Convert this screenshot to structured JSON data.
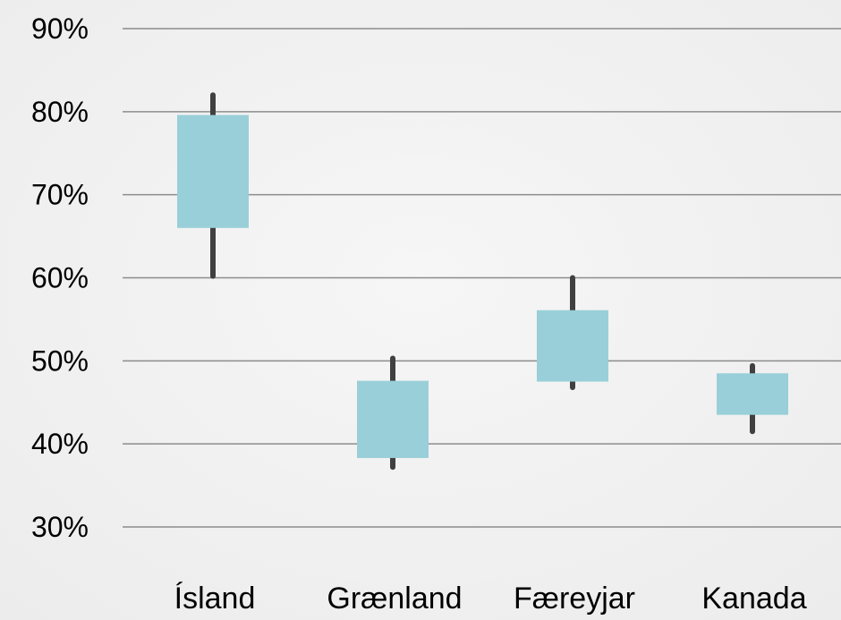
{
  "chart_data": {
    "type": "box",
    "title": "",
    "xlabel": "",
    "ylabel": "",
    "ylim": [
      30,
      90
    ],
    "y_ticks": [
      "30%",
      "40%",
      "50%",
      "60%",
      "70%",
      "80%",
      "90%"
    ],
    "categories": [
      "Ísland",
      "Grænland",
      "Færeyjar",
      "Kanada"
    ],
    "series": [
      {
        "values": [
          {
            "min": 60.2,
            "q1": 66.0,
            "q3": 79.6,
            "max": 82.0
          },
          {
            "min": 37.2,
            "q1": 38.3,
            "q3": 47.6,
            "max": 50.3
          },
          {
            "min": 46.8,
            "q1": 47.5,
            "q3": 56.1,
            "max": 60.0
          },
          {
            "min": 41.5,
            "q1": 43.5,
            "q3": 48.5,
            "max": 49.4
          }
        ]
      }
    ],
    "grid": true,
    "colors": {
      "box": "#99cfd8",
      "whisker": "#404040",
      "grid": "#8c8c8c"
    }
  }
}
